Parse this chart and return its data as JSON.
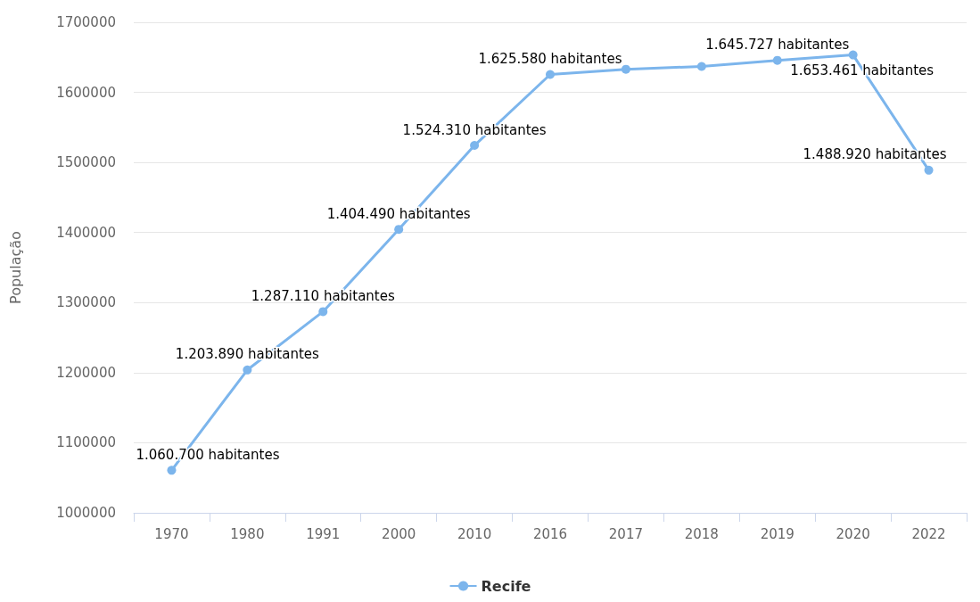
{
  "chart_data": {
    "type": "line",
    "ylabel": "População",
    "categories": [
      "1970",
      "1980",
      "1991",
      "2000",
      "2010",
      "2016",
      "2017",
      "2018",
      "2019",
      "2020",
      "2022"
    ],
    "series": [
      {
        "name": "Recife",
        "color": "#7cb5ec",
        "values": [
          1060700,
          1203890,
          1287110,
          1404490,
          1524310,
          1625580,
          1633000,
          1637000,
          1645727,
          1653461,
          1488920
        ],
        "value_labels": [
          "1.060.700 habitantes",
          "1.203.890 habitantes",
          "1.287.110 habitantes",
          "1.404.490 habitantes",
          "1.524.310 habitantes",
          "1.625.580 habitantes",
          null,
          null,
          "1.645.727 habitantes",
          "1.653.461 habitantes",
          "1.488.920 habitantes"
        ]
      }
    ],
    "ylim": [
      1000000,
      1700000
    ],
    "yticks": [
      1000000,
      1100000,
      1200000,
      1300000,
      1400000,
      1500000,
      1600000,
      1700000
    ],
    "grid": "y",
    "legend": "bottom",
    "marker": "circle",
    "line_style": "solid"
  }
}
